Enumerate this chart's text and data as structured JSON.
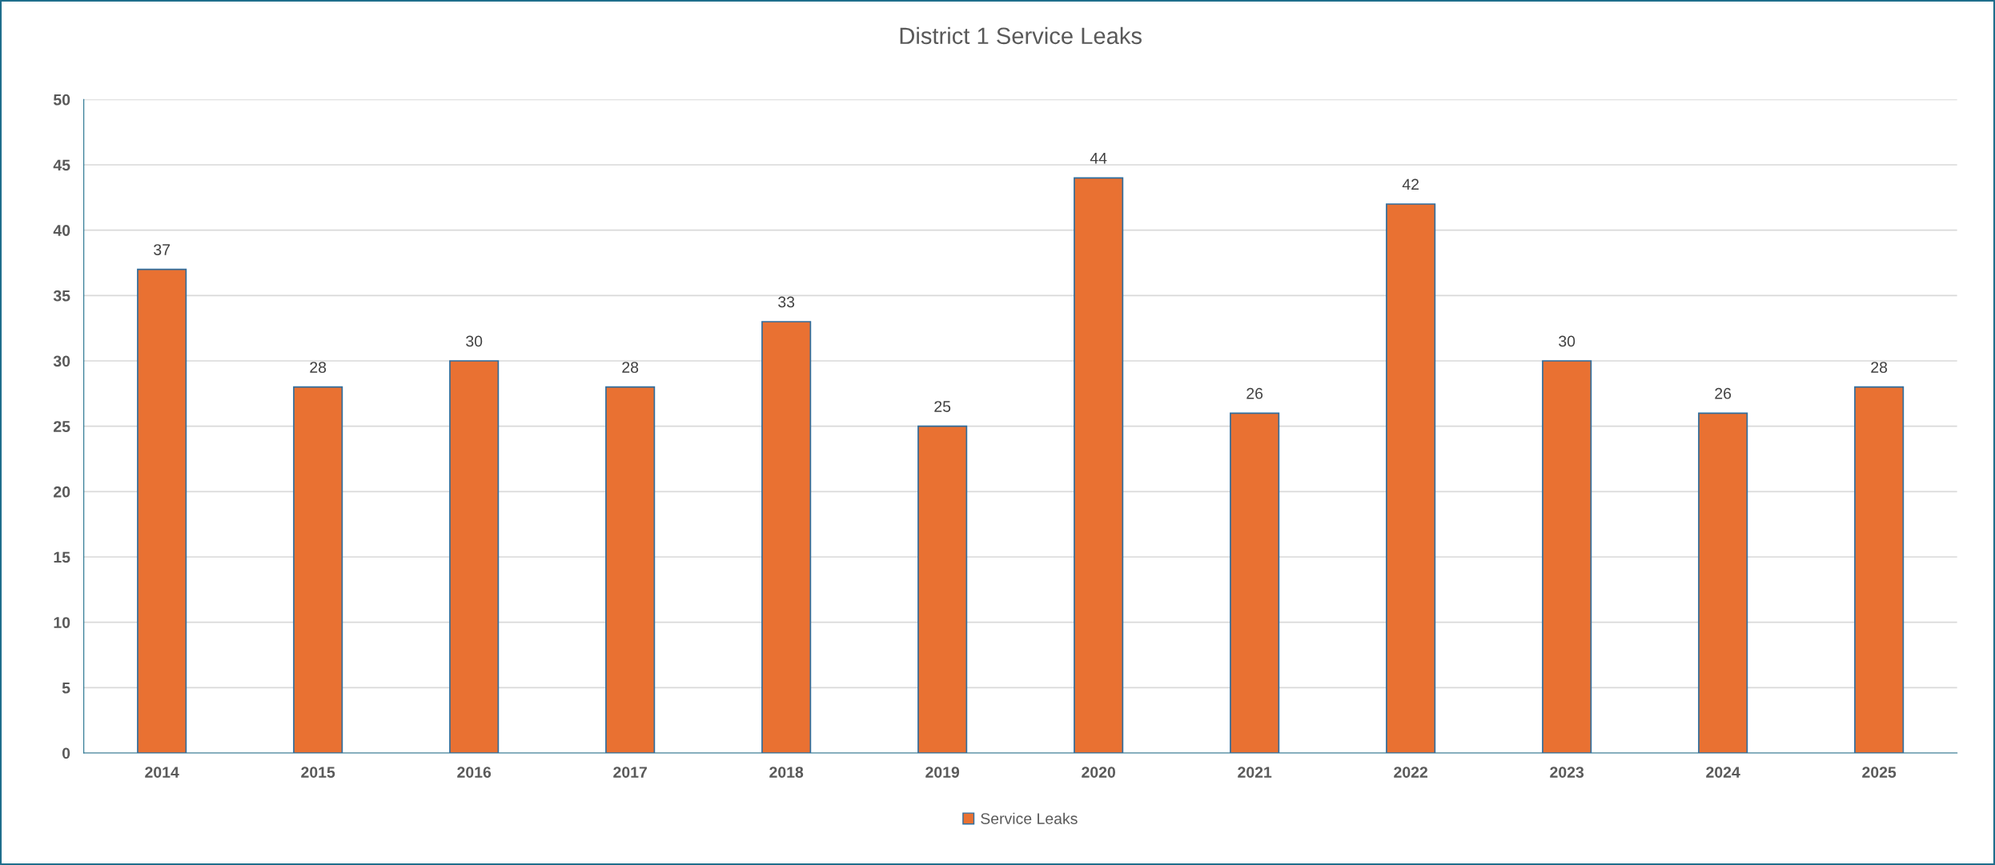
{
  "chart_data": {
    "type": "bar",
    "title": "District 1 Service Leaks",
    "categories": [
      "2014",
      "2015",
      "2016",
      "2017",
      "2018",
      "2019",
      "2020",
      "2021",
      "2022",
      "2023",
      "2024",
      "2025"
    ],
    "series": [
      {
        "name": "Service Leaks",
        "color": "#e97132",
        "values": [
          37,
          28,
          30,
          28,
          33,
          25,
          44,
          26,
          42,
          30,
          26,
          28
        ]
      }
    ],
    "ylim": [
      0,
      50
    ],
    "yticks": [
      0,
      5,
      10,
      15,
      20,
      25,
      30,
      35,
      40,
      45,
      50
    ],
    "grid": "y",
    "legend": "bottom",
    "data_labels": true
  }
}
